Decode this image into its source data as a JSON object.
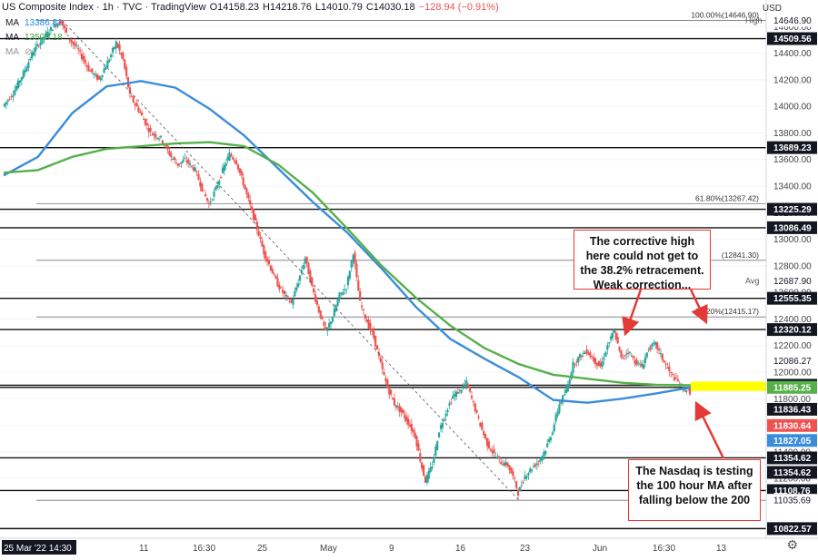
{
  "header": {
    "title": "US Composite Index · 1h · TVC · TradingView",
    "o": "O14158.23",
    "h": "H14218.76",
    "l": "L14010.79",
    "c": "C14030.18",
    "chg": "−128.94 (−0.91%)"
  },
  "ma1": {
    "label": "MA",
    "value": "13386.81"
  },
  "ma2": {
    "label": "MA",
    "value": "13503.18"
  },
  "ma3": {
    "label": "MA"
  },
  "currency": "USD",
  "colors": {
    "up": "#26a69a",
    "down": "#ef5350",
    "ma100": "#3a8ddb",
    "ma200": "#55b04a",
    "highlight": "#ffff00"
  },
  "notes": {
    "top": "The corrective high here could not get to the 38.2% retracement. Weak correction...",
    "bottom": "The Nasdaq is testing the 100 hour MA after falling below the 200"
  },
  "chart_data": {
    "type": "line",
    "title": "US Composite Index, 1h, TVC",
    "ylim": [
      10750,
      14800
    ],
    "y_ticks": [
      11200,
      11400,
      11600,
      11800,
      12000,
      12200,
      12400,
      12600,
      12800,
      13000,
      13200,
      13400,
      13600,
      13800,
      14000,
      14200,
      14400,
      14600
    ],
    "x_ticks": [
      "25 Mar '22  14:30",
      "11",
      "16:30",
      "25",
      "May",
      "9",
      "16",
      "23",
      "Jun",
      "16:30",
      "13"
    ],
    "price_path": [
      [
        0,
        14000
      ],
      [
        3,
        14100
      ],
      [
        6,
        14250
      ],
      [
        9,
        14420
      ],
      [
        12,
        14520
      ],
      [
        15,
        14610
      ],
      [
        17,
        14640
      ],
      [
        19,
        14520
      ],
      [
        22,
        14420
      ],
      [
        25,
        14280
      ],
      [
        28,
        14200
      ],
      [
        31,
        14360
      ],
      [
        33,
        14480
      ],
      [
        35,
        14350
      ],
      [
        37,
        14080
      ],
      [
        40,
        13950
      ],
      [
        43,
        13800
      ],
      [
        46,
        13760
      ],
      [
        49,
        13620
      ],
      [
        51,
        13560
      ],
      [
        53,
        13600
      ],
      [
        56,
        13520
      ],
      [
        58,
        13380
      ],
      [
        60,
        13260
      ],
      [
        62,
        13380
      ],
      [
        64,
        13520
      ],
      [
        66,
        13640
      ],
      [
        68,
        13580
      ],
      [
        70,
        13420
      ],
      [
        72,
        13250
      ],
      [
        74,
        13080
      ],
      [
        76,
        12900
      ],
      [
        78,
        12780
      ],
      [
        80,
        12660
      ],
      [
        82,
        12580
      ],
      [
        84,
        12520
      ],
      [
        86,
        12680
      ],
      [
        88,
        12860
      ],
      [
        90,
        12640
      ],
      [
        92,
        12460
      ],
      [
        94,
        12300
      ],
      [
        96,
        12420
      ],
      [
        98,
        12580
      ],
      [
        100,
        12640
      ],
      [
        102,
        12900
      ],
      [
        103,
        12700
      ],
      [
        104,
        12520
      ],
      [
        106,
        12380
      ],
      [
        108,
        12260
      ],
      [
        110,
        12060
      ],
      [
        112,
        11880
      ],
      [
        114,
        11760
      ],
      [
        116,
        11700
      ],
      [
        118,
        11620
      ],
      [
        120,
        11520
      ],
      [
        122,
        11280
      ],
      [
        123,
        11180
      ],
      [
        125,
        11300
      ],
      [
        127,
        11560
      ],
      [
        129,
        11700
      ],
      [
        131,
        11820
      ],
      [
        133,
        11860
      ],
      [
        135,
        11920
      ],
      [
        137,
        11760
      ],
      [
        139,
        11600
      ],
      [
        141,
        11460
      ],
      [
        143,
        11380
      ],
      [
        145,
        11320
      ],
      [
        147,
        11300
      ],
      [
        149,
        11180
      ],
      [
        150,
        11090
      ],
      [
        152,
        11220
      ],
      [
        154,
        11280
      ],
      [
        156,
        11330
      ],
      [
        158,
        11420
      ],
      [
        160,
        11560
      ],
      [
        162,
        11760
      ],
      [
        164,
        11860
      ],
      [
        166,
        12060
      ],
      [
        168,
        12120
      ],
      [
        170,
        12160
      ],
      [
        172,
        12090
      ],
      [
        174,
        12040
      ],
      [
        176,
        12200
      ],
      [
        178,
        12310
      ],
      [
        180,
        12100
      ],
      [
        182,
        12160
      ],
      [
        184,
        12080
      ],
      [
        186,
        12040
      ],
      [
        188,
        12180
      ],
      [
        190,
        12210
      ],
      [
        192,
        12100
      ],
      [
        194,
        12000
      ],
      [
        196,
        11940
      ],
      [
        198,
        11880
      ],
      [
        200,
        11850
      ]
    ],
    "series": [
      {
        "name": "MA 13386.81",
        "type": "line",
        "values": [
          [
            0,
            13480
          ],
          [
            10,
            13620
          ],
          [
            20,
            13950
          ],
          [
            30,
            14150
          ],
          [
            40,
            14190
          ],
          [
            50,
            14140
          ],
          [
            60,
            13980
          ],
          [
            70,
            13780
          ],
          [
            80,
            13530
          ],
          [
            90,
            13280
          ],
          [
            100,
            13050
          ],
          [
            110,
            12780
          ],
          [
            120,
            12490
          ],
          [
            130,
            12250
          ],
          [
            140,
            12100
          ],
          [
            150,
            11960
          ],
          [
            160,
            11790
          ],
          [
            170,
            11770
          ],
          [
            180,
            11800
          ],
          [
            190,
            11840
          ],
          [
            200,
            11885
          ]
        ]
      },
      {
        "name": "MA 13503.18",
        "type": "line",
        "values": [
          [
            0,
            13500
          ],
          [
            10,
            13520
          ],
          [
            20,
            13620
          ],
          [
            30,
            13680
          ],
          [
            40,
            13700
          ],
          [
            50,
            13720
          ],
          [
            60,
            13730
          ],
          [
            70,
            13700
          ],
          [
            80,
            13560
          ],
          [
            90,
            13350
          ],
          [
            100,
            13080
          ],
          [
            110,
            12800
          ],
          [
            120,
            12560
          ],
          [
            130,
            12350
          ],
          [
            140,
            12180
          ],
          [
            150,
            12060
          ],
          [
            160,
            11980
          ],
          [
            170,
            11950
          ],
          [
            180,
            11920
          ],
          [
            190,
            11905
          ],
          [
            200,
            11901
          ]
        ]
      }
    ],
    "horizontal_levels": [
      14509.56,
      14646.9,
      13689.23,
      13267.42,
      13225.29,
      13086.49,
      12841.3,
      12555.35,
      12415.17,
      12320.12,
      11901.43,
      11885.25,
      11354.62,
      11108.76,
      11035.69,
      10822.57
    ],
    "retracement_labels": [
      {
        "value": 14646.9,
        "text": "100.00%(14646.90)"
      },
      {
        "value": 13267.42,
        "text": "61.80%(13267.42)"
      },
      {
        "value": 12841.3,
        "text": "(12841.30)"
      },
      {
        "value": 12415.17,
        "text": "38.20%(12415.17)"
      }
    ],
    "axis_labels": [
      {
        "value": 14646.9,
        "text": "14646.90",
        "style": "plain"
      },
      {
        "value": 14509.56,
        "text": "14509.56",
        "style": "black"
      },
      {
        "value": 13689.23,
        "text": "13689.23",
        "style": "black"
      },
      {
        "value": 13225.29,
        "text": "13225.29",
        "style": "black"
      },
      {
        "value": 13086.49,
        "text": "13086.49",
        "style": "black"
      },
      {
        "value": 12687.9,
        "text": "12687.90",
        "style": "plain"
      },
      {
        "value": 12555.35,
        "text": "12555.35",
        "style": "black"
      },
      {
        "value": 12320.12,
        "text": "12320.12",
        "style": "black"
      },
      {
        "value": 12086.27,
        "text": "12086.27",
        "style": "plain"
      },
      {
        "value": 11901.43,
        "text": "11901.43",
        "style": "black"
      },
      {
        "value": 11885.25,
        "text": "11885.25",
        "style": "green"
      },
      {
        "value": 11836.43,
        "text": "11836.43",
        "style": "black"
      },
      {
        "value": 11830.64,
        "text": "11830.64",
        "style": "red"
      },
      {
        "value": 11827.05,
        "text": "11827.05",
        "style": "blue"
      },
      {
        "value": 11354.62,
        "text": "11354.62",
        "style": "black"
      },
      {
        "value": 11354.62,
        "text": "11354.62",
        "style": "black"
      },
      {
        "value": 11108.76,
        "text": "11108.76",
        "style": "black"
      },
      {
        "value": 11035.69,
        "text": "11035.69",
        "style": "plain"
      },
      {
        "value": 10822.57,
        "text": "10822.57",
        "style": "black"
      }
    ],
    "tags": [
      {
        "value": 14646.9,
        "text": "High"
      },
      {
        "value": 12687.9,
        "text": "Avg"
      }
    ],
    "highlight_zone": [
      11885.25,
      11901.43
    ]
  }
}
